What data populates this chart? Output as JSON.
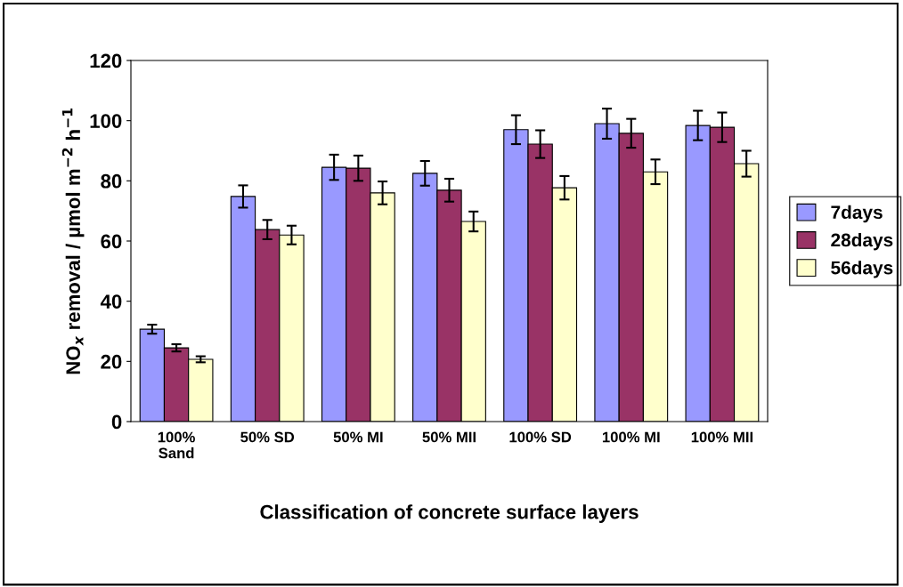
{
  "chart_data": {
    "type": "bar",
    "xlabel": "Classification of concrete surface layers",
    "ylabel": "NO$_{x}$ removal / µmol m$^{−2}$ h$^{−1}$",
    "categories": [
      "100%\nSand",
      "50% SD",
      "50% MI",
      "50% MII",
      "100% SD",
      "100% MI",
      "100% MII"
    ],
    "series": [
      {
        "name": "7days",
        "color": "#9999ff",
        "values": [
          30.7,
          74.8,
          84.5,
          82.5,
          97,
          99,
          98.4
        ],
        "errors": [
          1.5,
          3.7,
          4.2,
          4.1,
          4.8,
          5,
          4.9
        ]
      },
      {
        "name": "28days",
        "color": "#993366",
        "values": [
          24.5,
          63.8,
          84.2,
          76.9,
          92.2,
          95.8,
          97.8
        ],
        "errors": [
          1.2,
          3.2,
          4.2,
          3.8,
          4.6,
          4.8,
          4.9
        ]
      },
      {
        "name": "56days",
        "color": "#ffffcc",
        "values": [
          20.7,
          62,
          76,
          66.5,
          77.7,
          83,
          85.7
        ],
        "errors": [
          1,
          3.1,
          3.8,
          3.3,
          3.9,
          4.1,
          4.3
        ]
      }
    ],
    "ylim": [
      0,
      120
    ],
    "yticks": [
      0,
      20,
      40,
      60,
      80,
      100,
      120
    ],
    "grid": false,
    "legend": "right"
  }
}
